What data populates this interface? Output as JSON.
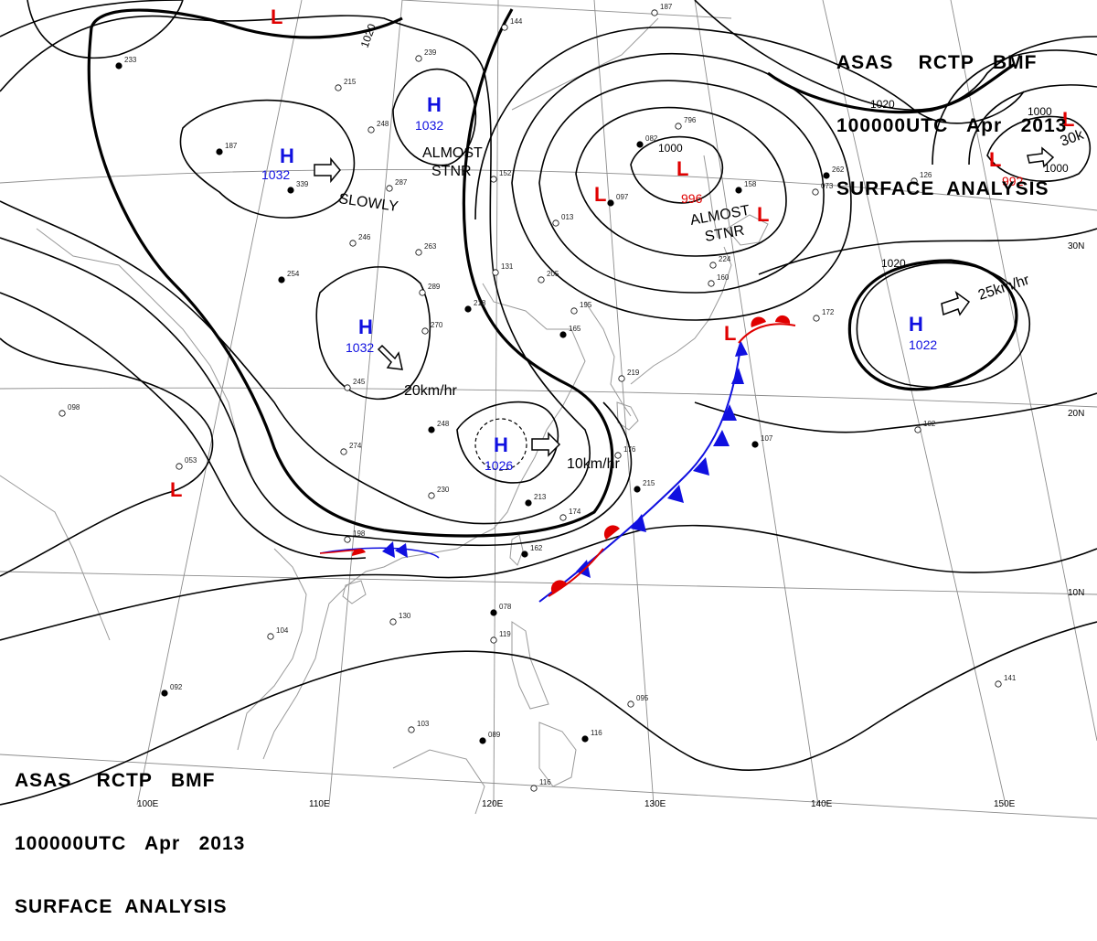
{
  "header": {
    "line1": "ASAS    RCTP   BMF",
    "line2": "100000UTC   Apr   2013",
    "line3": "SURFACE  ANALYSIS"
  },
  "grid": {
    "longitude_labels": [
      "100E",
      "110E",
      "120E",
      "130E",
      "140E",
      "150E"
    ],
    "latitude_labels": [
      "10N",
      "20N",
      "30N"
    ]
  },
  "isobar_labels": [
    "1020",
    "1020",
    "1020",
    "1000",
    "1000",
    "1000"
  ],
  "pressure_centers": [
    {
      "type": "H",
      "value": "1032",
      "color": "#1010e0"
    },
    {
      "type": "H",
      "value": "1032",
      "color": "#1010e0"
    },
    {
      "type": "H",
      "value": "1032",
      "color": "#1010e0"
    },
    {
      "type": "H",
      "value": "1026",
      "color": "#1010e0"
    },
    {
      "type": "H",
      "value": "1022",
      "color": "#1010e0"
    },
    {
      "type": "L",
      "value": "996",
      "color": "#e00000"
    },
    {
      "type": "L",
      "value": "992",
      "color": "#e00000"
    },
    {
      "type": "L",
      "value": "",
      "color": "#e00000"
    },
    {
      "type": "L",
      "value": "",
      "color": "#e00000"
    },
    {
      "type": "L",
      "value": "",
      "color": "#e00000"
    },
    {
      "type": "L",
      "value": "",
      "color": "#e00000"
    },
    {
      "type": "L",
      "value": "",
      "color": "#e00000"
    },
    {
      "type": "L",
      "value": "",
      "color": "#e00000"
    }
  ],
  "motion_labels": [
    "SLOWLY",
    "ALMOST",
    "STNR",
    "ALMOST",
    "STNR",
    "20km/hr",
    "10km/hr",
    "25km/hr",
    "30k"
  ],
  "station_labels": [
    "233",
    "215",
    "239",
    "187",
    "248",
    "287",
    "339",
    "246",
    "263",
    "254",
    "289",
    "270",
    "218",
    "245",
    "219",
    "248",
    "274",
    "230",
    "213",
    "198",
    "174",
    "162",
    "130",
    "104",
    "092",
    "098",
    "053",
    "078",
    "119",
    "095",
    "116",
    "141",
    "116",
    "089",
    "103",
    "102",
    "107",
    "172",
    "176",
    "215",
    "205",
    "195",
    "165",
    "144",
    "187",
    "262",
    "224",
    "160",
    "082",
    "796",
    "013",
    "097",
    "073",
    "126",
    "158",
    "131",
    "152",
    "209",
    "164"
  ],
  "colors": {
    "isobar": "#000000",
    "grid": "#8c8c8c",
    "coast": "#9a9a9a",
    "high": "#1010e0",
    "low": "#e00000",
    "cold_front": "#1010e0",
    "warm_front": "#e00000"
  }
}
